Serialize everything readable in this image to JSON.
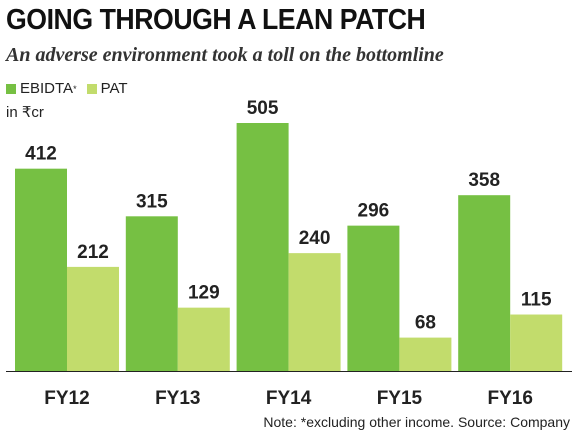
{
  "chart_data": {
    "type": "bar",
    "title": "GOING THROUGH A LEAN PATCH",
    "subtitle": "An adverse environment took a toll on the bottomline",
    "unit_label": "in ₹cr",
    "categories": [
      "FY12",
      "FY13",
      "FY14",
      "FY15",
      "FY16"
    ],
    "series": [
      {
        "name": "EBIDTA",
        "legend_suffix": "*",
        "color": "#76c043",
        "values": [
          412,
          315,
          505,
          296,
          358
        ]
      },
      {
        "name": "PAT",
        "color": "#c2dc6c",
        "values": [
          212,
          129,
          240,
          68,
          115
        ]
      }
    ],
    "ylim": [
      0,
      505
    ],
    "grid": false,
    "legend_placement": "top-left",
    "note": "Note: *excluding other income. Source: Company"
  }
}
